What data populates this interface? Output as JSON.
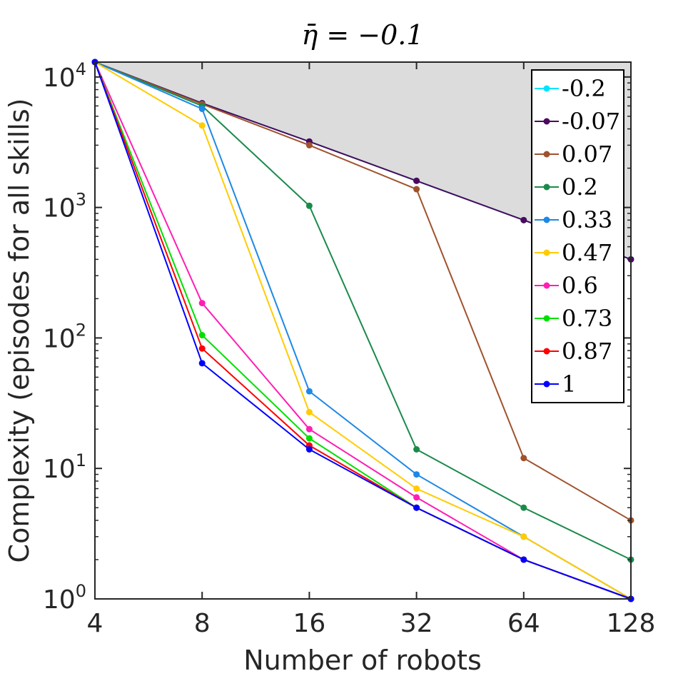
{
  "chart_data": {
    "type": "line",
    "title": "η̄ = −0.1",
    "xlabel": "Number of robots",
    "ylabel": "Complexity (episodes for all skills)",
    "x": [
      4,
      8,
      16,
      32,
      64,
      128
    ],
    "x_tick_labels": [
      "4",
      "8",
      "16",
      "32",
      "64",
      "128"
    ],
    "x_scale": "log2",
    "y_scale": "log10",
    "ylim": [
      1,
      13000
    ],
    "y_ticks": [
      {
        "value": 1,
        "base": "10",
        "exp": "0"
      },
      {
        "value": 10,
        "base": "10",
        "exp": "1"
      },
      {
        "value": 100,
        "base": "10",
        "exp": "2"
      },
      {
        "value": 1000,
        "base": "10",
        "exp": "3"
      },
      {
        "value": 10000,
        "base": "10",
        "exp": "4"
      }
    ],
    "shaded_region": "gray area between the top axis and the -0.07 curve",
    "grid": false,
    "legend_position": "top-right",
    "series": [
      {
        "name": "-0.2",
        "color": "#00e5ff",
        "values": [
          13000,
          6300,
          3200,
          1600,
          800,
          400
        ]
      },
      {
        "name": "-0.07",
        "color": "#4b0a5e",
        "values": [
          13000,
          6300,
          3200,
          1600,
          800,
          400
        ]
      },
      {
        "name": "0.07",
        "color": "#a0522d",
        "values": [
          13000,
          6200,
          3000,
          1380,
          12,
          4
        ]
      },
      {
        "name": "0.2",
        "color": "#1a8a4a",
        "values": [
          13000,
          6000,
          1030,
          14,
          5,
          2
        ]
      },
      {
        "name": "0.33",
        "color": "#1e88e5",
        "values": [
          13000,
          5700,
          39,
          9,
          3,
          1
        ]
      },
      {
        "name": "0.47",
        "color": "#ffcc00",
        "values": [
          13000,
          4250,
          27,
          7,
          3,
          1
        ]
      },
      {
        "name": "0.6",
        "color": "#ff1fb4",
        "values": [
          13000,
          185,
          20,
          6,
          2,
          1
        ]
      },
      {
        "name": "0.73",
        "color": "#00e000",
        "values": [
          13000,
          105,
          17,
          5,
          2,
          1
        ]
      },
      {
        "name": "0.87",
        "color": "#ff0000",
        "values": [
          13000,
          83,
          15,
          5,
          2,
          1
        ]
      },
      {
        "name": "1",
        "color": "#0000ff",
        "values": [
          13000,
          64,
          14,
          5,
          2,
          1
        ]
      }
    ]
  }
}
